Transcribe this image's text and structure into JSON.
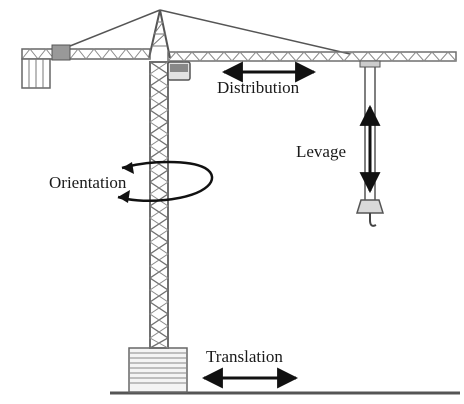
{
  "labels": {
    "distribution": "Distribution",
    "levage": "Levage",
    "orientation": "Orientation",
    "translation": "Translation"
  },
  "colors": {
    "steel": "#6f6f6f",
    "steel_light": "#bdbdbd",
    "arrow": "#111111",
    "ground": "#555555"
  }
}
